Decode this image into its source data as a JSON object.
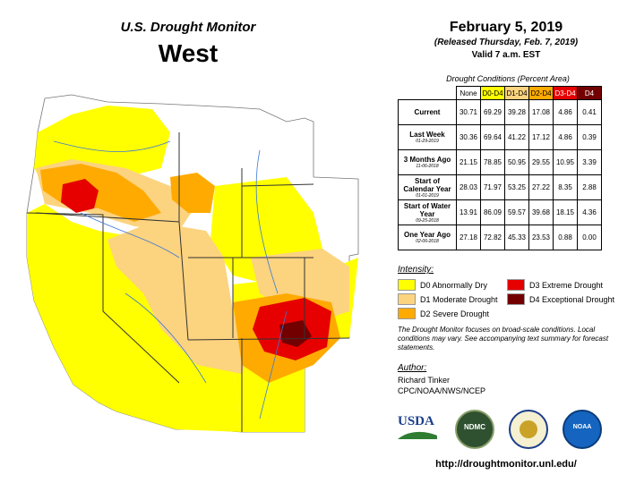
{
  "header": {
    "title": "U.S. Drought Monitor",
    "region": "West",
    "date": "February 5, 2019",
    "released": "(Released Thursday, Feb. 7, 2019)",
    "valid": "Valid 7 a.m. EST"
  },
  "conditions": {
    "title": "Drought Conditions (Percent Area)",
    "columns": [
      "None",
      "D0-D4",
      "D1-D4",
      "D2-D4",
      "D3-D4",
      "D4"
    ],
    "column_colors": [
      "#ffffff",
      "#ffff00",
      "#fcd37f",
      "#ffaa00",
      "#e60000",
      "#730000"
    ],
    "rows": [
      {
        "label": "Current",
        "sub": "",
        "values": [
          "30.71",
          "69.29",
          "39.28",
          "17.08",
          "4.86",
          "0.41"
        ]
      },
      {
        "label": "Last Week",
        "sub": "01-29-2019",
        "values": [
          "30.36",
          "69.64",
          "41.22",
          "17.12",
          "4.86",
          "0.39"
        ]
      },
      {
        "label": "3 Months Ago",
        "sub": "11-06-2018",
        "values": [
          "21.15",
          "78.85",
          "50.95",
          "29.55",
          "10.95",
          "3.39"
        ]
      },
      {
        "label": "Start of Calendar Year",
        "sub": "01-01-2019",
        "values": [
          "28.03",
          "71.97",
          "53.25",
          "27.22",
          "8.35",
          "2.88"
        ]
      },
      {
        "label": "Start of Water Year",
        "sub": "09-25-2018",
        "values": [
          "13.91",
          "86.09",
          "59.57",
          "39.68",
          "18.15",
          "4.36"
        ]
      },
      {
        "label": "One Year Ago",
        "sub": "02-06-2018",
        "values": [
          "27.18",
          "72.82",
          "45.33",
          "23.53",
          "0.88",
          "0.00"
        ]
      }
    ]
  },
  "legend": {
    "title": "Intensity:",
    "items": [
      {
        "label": "D0 Abnormally Dry",
        "color": "#ffff00"
      },
      {
        "label": "D1 Moderate Drought",
        "color": "#fcd37f"
      },
      {
        "label": "D2 Severe Drought",
        "color": "#ffaa00"
      },
      {
        "label": "D3 Extreme Drought",
        "color": "#e60000"
      },
      {
        "label": "D4 Exceptional Drought",
        "color": "#730000"
      }
    ]
  },
  "note": "The Drought Monitor focuses on broad-scale conditions. Local conditions may vary. See accompanying text summary for forecast statements.",
  "author": {
    "heading": "Author:",
    "name": "Richard Tinker",
    "org": "CPC/NOAA/NWS/NCEP"
  },
  "logos": {
    "usda": "USDA",
    "ndmc": "NDMC",
    "noaa": "NOAA"
  },
  "url": "http://droughtmonitor.unl.edu/"
}
